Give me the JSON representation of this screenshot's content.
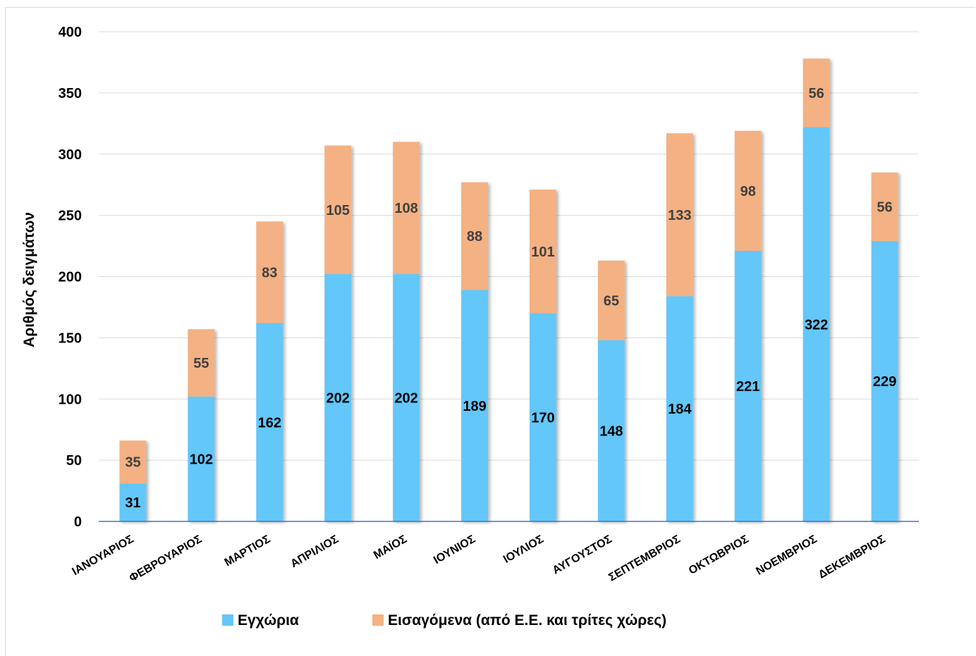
{
  "chart_data": {
    "type": "bar",
    "stacked": true,
    "title": "",
    "xlabel": "",
    "ylabel": "Αριθμός δειγμάτων",
    "ylim": [
      0,
      400
    ],
    "yticks": [
      0,
      50,
      100,
      150,
      200,
      250,
      300,
      350,
      400
    ],
    "grid": true,
    "legend_position": "bottom",
    "categories": [
      "ΙΑΝΟΥΑΡΙΟΣ",
      "ΦΕΒΡΟΥΑΡΙΟΣ",
      "ΜΑΡΤΙΟΣ",
      "ΑΠΡΙΛΙΟΣ",
      "ΜΑΪΟΣ",
      "ΙΟΥΝΙΟΣ",
      "ΙΟΥΛΙΟΣ",
      "ΑΥΓΟΥΣΤΟΣ",
      "ΣΕΠΤΕΜΒΡΙΟΣ",
      "ΟΚΤΩΒΡΙΟΣ",
      "ΝΟΕΜΒΡΙΟΣ",
      "ΔΕΚΕΜΒΡΙΟΣ"
    ],
    "series": [
      {
        "name": "Εγχώρια",
        "color": "#63c7fa",
        "values": [
          31,
          102,
          162,
          202,
          202,
          189,
          170,
          148,
          184,
          221,
          322,
          229
        ]
      },
      {
        "name": "Εισαγόμενα (από Ε.Ε. και τρίτες χώρες)",
        "color": "#f4b183",
        "values": [
          35,
          55,
          83,
          105,
          108,
          88,
          101,
          65,
          133,
          98,
          56,
          56
        ]
      }
    ],
    "colors": {
      "grid": "#d9d9d9",
      "axis": "#4472c4",
      "text": "#000000",
      "label_dark": "#404040"
    }
  }
}
